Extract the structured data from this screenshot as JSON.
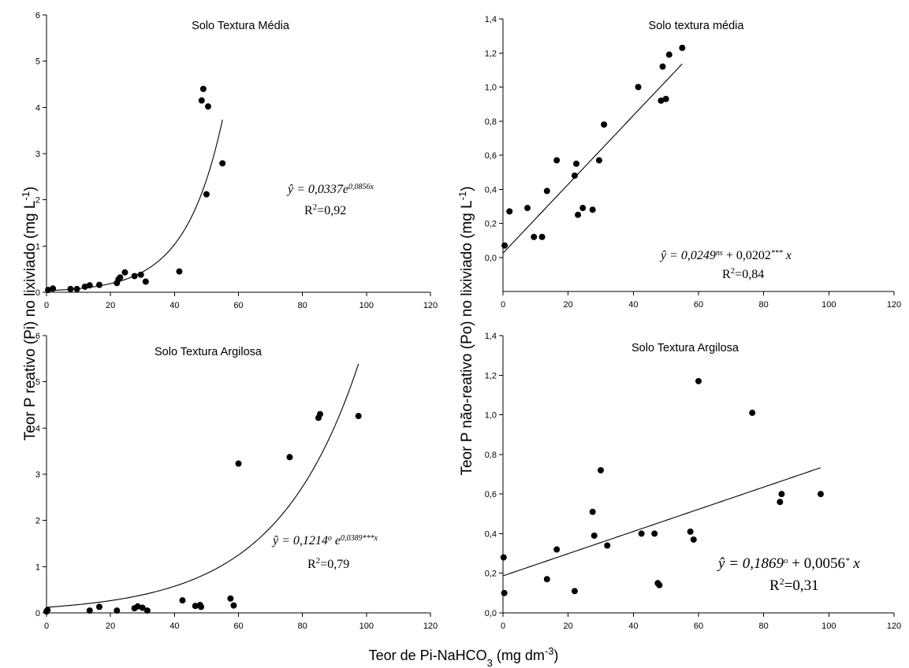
{
  "figure": {
    "y_label_left": "Teor P reativo (Pi) no lixiviado (mg L",
    "y_label_left_sup": "-1",
    "y_label_left_end": ")",
    "y_label_right": "Teor P não-reativo (Po) no lixiviado (mg L",
    "y_label_right_sup": "-1",
    "y_label_right_end": ")",
    "x_label": "Teor de Pi-NaHCO",
    "x_label_sub": "3",
    "x_label_unit": " (mg dm",
    "x_label_unit_sup": "-3",
    "x_label_end": ")"
  },
  "chart_data": [
    {
      "id": "top-left",
      "type": "scatter",
      "title": "Solo Textura Média",
      "equation": {
        "lhs": "ŷ = 0,0337",
        "base": "e",
        "exponent": "0,0856x",
        "r2_label": "R",
        "r2_sup": "2",
        "r2_value": "=0,92"
      },
      "xlim": [
        0,
        120
      ],
      "ylim": [
        0,
        6
      ],
      "xticks": [
        0,
        20,
        40,
        60,
        80,
        100,
        120
      ],
      "yticks": [
        0,
        1,
        2,
        3,
        4,
        5,
        6
      ],
      "xtick_labels": [
        "0",
        "20",
        "40",
        "60",
        "80",
        "100",
        "120"
      ],
      "ytick_labels": [
        "0",
        "1",
        "2",
        "3",
        "4",
        "5",
        "6"
      ],
      "fit": {
        "kind": "exp",
        "a": 0.0337,
        "b": 0.0856,
        "xmin": 0,
        "xmax": 55
      },
      "points": [
        {
          "x": 0.5,
          "y": 0.05
        },
        {
          "x": 2.0,
          "y": 0.08
        },
        {
          "x": 7.5,
          "y": 0.07
        },
        {
          "x": 9.5,
          "y": 0.07
        },
        {
          "x": 12.0,
          "y": 0.12
        },
        {
          "x": 13.5,
          "y": 0.15
        },
        {
          "x": 16.5,
          "y": 0.16
        },
        {
          "x": 22.0,
          "y": 0.2
        },
        {
          "x": 22.5,
          "y": 0.28
        },
        {
          "x": 23.0,
          "y": 0.32
        },
        {
          "x": 24.5,
          "y": 0.43
        },
        {
          "x": 27.5,
          "y": 0.35
        },
        {
          "x": 29.5,
          "y": 0.38
        },
        {
          "x": 31.0,
          "y": 0.23
        },
        {
          "x": 41.5,
          "y": 0.45
        },
        {
          "x": 48.5,
          "y": 4.15
        },
        {
          "x": 49.0,
          "y": 4.4
        },
        {
          "x": 50.0,
          "y": 2.12
        },
        {
          "x": 50.5,
          "y": 4.02
        },
        {
          "x": 55.0,
          "y": 2.79
        }
      ]
    },
    {
      "id": "top-right",
      "type": "scatter",
      "title": "Solo textura média",
      "equation": {
        "lhs": "ŷ = 0,0249",
        "sup1": "ns",
        "mid": " + 0,0202",
        "sup2": "***",
        "rhs": " x",
        "r2_label": "R",
        "r2_sup": "2",
        "r2_value": "=0,84"
      },
      "xlim": [
        0,
        120
      ],
      "ylim": [
        -0.2,
        1.4
      ],
      "xticks": [
        0,
        20,
        40,
        60,
        80,
        100,
        120
      ],
      "yticks": [
        0.0,
        0.2,
        0.4,
        0.6,
        0.8,
        1.0,
        1.2,
        1.4
      ],
      "xtick_labels": [
        "0",
        "20",
        "40",
        "60",
        "80",
        "100",
        "120"
      ],
      "ytick_labels": [
        "0,0",
        "0,2",
        "0,4",
        "0,6",
        "0,8",
        "1,0",
        "1,2",
        "1,4"
      ],
      "fit": {
        "kind": "linear",
        "a": 0.0249,
        "b": 0.0202,
        "xmin": 0,
        "xmax": 55
      },
      "points": [
        {
          "x": 0.5,
          "y": 0.07
        },
        {
          "x": 2.0,
          "y": 0.27
        },
        {
          "x": 7.5,
          "y": 0.29
        },
        {
          "x": 9.5,
          "y": 0.12
        },
        {
          "x": 12.0,
          "y": 0.12
        },
        {
          "x": 13.5,
          "y": 0.39
        },
        {
          "x": 16.5,
          "y": 0.57
        },
        {
          "x": 22.0,
          "y": 0.48
        },
        {
          "x": 22.5,
          "y": 0.55
        },
        {
          "x": 23.0,
          "y": 0.25
        },
        {
          "x": 24.5,
          "y": 0.29
        },
        {
          "x": 27.5,
          "y": 0.28
        },
        {
          "x": 29.5,
          "y": 0.57
        },
        {
          "x": 31.0,
          "y": 0.78
        },
        {
          "x": 41.5,
          "y": 1.0
        },
        {
          "x": 48.5,
          "y": 0.92
        },
        {
          "x": 49.0,
          "y": 1.12
        },
        {
          "x": 50.0,
          "y": 0.93
        },
        {
          "x": 51.0,
          "y": 1.19
        },
        {
          "x": 55.0,
          "y": 1.23
        }
      ]
    },
    {
      "id": "bottom-left",
      "type": "scatter",
      "title": "Solo Textura Argilosa",
      "equation": {
        "lhs": "ŷ = 0,1214",
        "sup1": "o",
        "base": " e",
        "exponent": "0,0389***x",
        "r2_label": "R",
        "r2_sup": "2",
        "r2_value": "=0,79"
      },
      "xlim": [
        0,
        120
      ],
      "ylim": [
        0,
        6
      ],
      "xticks": [
        0,
        20,
        40,
        60,
        80,
        100,
        120
      ],
      "yticks": [
        0,
        1,
        2,
        3,
        4,
        5,
        6
      ],
      "xtick_labels": [
        "0",
        "20",
        "40",
        "60",
        "80",
        "100",
        "120"
      ],
      "ytick_labels": [
        "0",
        "1",
        "2",
        "3",
        "4",
        "5",
        "6"
      ],
      "fit": {
        "kind": "exp",
        "a": 0.1214,
        "b": 0.0389,
        "xmin": 0,
        "xmax": 97.5
      },
      "points": [
        {
          "x": 0.0,
          "y": 0.03
        },
        {
          "x": 0.3,
          "y": 0.06
        },
        {
          "x": 13.5,
          "y": 0.05
        },
        {
          "x": 16.5,
          "y": 0.13
        },
        {
          "x": 22.0,
          "y": 0.05
        },
        {
          "x": 27.5,
          "y": 0.1
        },
        {
          "x": 28.5,
          "y": 0.14
        },
        {
          "x": 30.0,
          "y": 0.11
        },
        {
          "x": 31.5,
          "y": 0.05
        },
        {
          "x": 42.5,
          "y": 0.27
        },
        {
          "x": 46.5,
          "y": 0.15
        },
        {
          "x": 48.0,
          "y": 0.17
        },
        {
          "x": 48.3,
          "y": 0.13
        },
        {
          "x": 57.5,
          "y": 0.31
        },
        {
          "x": 58.5,
          "y": 0.16
        },
        {
          "x": 60.0,
          "y": 3.23
        },
        {
          "x": 76.0,
          "y": 3.37
        },
        {
          "x": 85.0,
          "y": 4.22
        },
        {
          "x": 85.5,
          "y": 4.3
        },
        {
          "x": 97.5,
          "y": 4.26
        }
      ]
    },
    {
      "id": "bottom-right",
      "type": "scatter",
      "title": "Solo Textura Argilosa",
      "equation": {
        "lhs": "ŷ = 0,1869",
        "sup1": "o",
        "mid": " + 0,0056",
        "sup2": "*",
        "rhs": " x",
        "r2_label": "R",
        "r2_sup": "2",
        "r2_value": "=0,31"
      },
      "xlim": [
        0,
        120
      ],
      "ylim": [
        0,
        1.4
      ],
      "xticks": [
        0,
        20,
        40,
        60,
        80,
        100,
        120
      ],
      "yticks": [
        0.0,
        0.2,
        0.4,
        0.6,
        0.8,
        1.0,
        1.2,
        1.4
      ],
      "xtick_labels": [
        "0",
        "20",
        "40",
        "60",
        "80",
        "100",
        "120"
      ],
      "ytick_labels": [
        "0,0",
        "0,2",
        "0,4",
        "0,6",
        "0,8",
        "1,0",
        "1,2",
        "1,4"
      ],
      "fit": {
        "kind": "linear",
        "a": 0.1869,
        "b": 0.0056,
        "xmin": 0,
        "xmax": 97.5
      },
      "points": [
        {
          "x": 0.2,
          "y": 0.28
        },
        {
          "x": 0.4,
          "y": 0.1
        },
        {
          "x": 13.5,
          "y": 0.17
        },
        {
          "x": 16.5,
          "y": 0.32
        },
        {
          "x": 22.0,
          "y": 0.11
        },
        {
          "x": 27.5,
          "y": 0.51
        },
        {
          "x": 28.0,
          "y": 0.39
        },
        {
          "x": 30.0,
          "y": 0.72
        },
        {
          "x": 32.0,
          "y": 0.34
        },
        {
          "x": 42.5,
          "y": 0.4
        },
        {
          "x": 46.5,
          "y": 0.4
        },
        {
          "x": 47.5,
          "y": 0.15
        },
        {
          "x": 48.0,
          "y": 0.14
        },
        {
          "x": 57.5,
          "y": 0.41
        },
        {
          "x": 58.5,
          "y": 0.37
        },
        {
          "x": 60.0,
          "y": 1.17
        },
        {
          "x": 76.5,
          "y": 1.01
        },
        {
          "x": 85.0,
          "y": 0.56
        },
        {
          "x": 85.5,
          "y": 0.6
        },
        {
          "x": 97.5,
          "y": 0.6
        }
      ]
    }
  ]
}
